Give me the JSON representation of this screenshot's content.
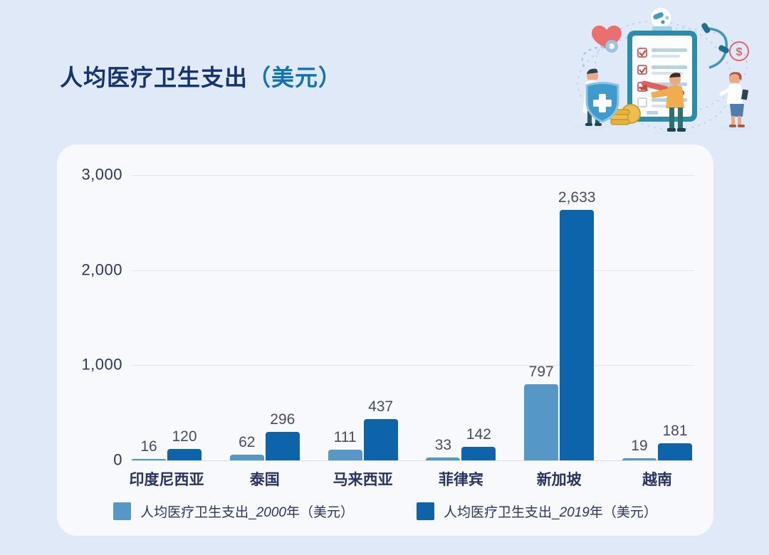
{
  "page": {
    "title_main": "人均医疗卫生支出",
    "title_paren": "（美元）"
  },
  "chart_data": {
    "type": "bar",
    "title": "人均医疗卫生支出（美元）",
    "categories": [
      "印度尼西亚",
      "泰国",
      "马来西亚",
      "菲律宾",
      "新加坡",
      "越南"
    ],
    "series": [
      {
        "name": "人均医疗卫生支出_2000年（美元）",
        "color": "#5598c7",
        "values": [
          16,
          62,
          111,
          33,
          797,
          19
        ]
      },
      {
        "name": "人均医疗卫生支出_2019年（美元）",
        "color": "#0d64ab",
        "values": [
          120,
          296,
          437,
          142,
          2633,
          181
        ]
      }
    ],
    "xlabel": "",
    "ylabel": "",
    "ylim": [
      0,
      3000
    ],
    "yticks": [
      0,
      1000,
      2000,
      3000
    ],
    "grid": true,
    "legend_position": "bottom"
  },
  "legend": {
    "items": [
      {
        "prefix": "人均医疗卫生支出_",
        "year": "2000",
        "suffix": "年（美元）",
        "color": "#5598c7"
      },
      {
        "prefix": "人均医疗卫生支出_",
        "year": "2019",
        "suffix": "年（美元）",
        "color": "#0d64ab"
      }
    ]
  },
  "colors": {
    "page_bg": "#dfe9f8",
    "card_bg": "#f7f9fd",
    "series_2000": "#5598c7",
    "series_2019": "#0d64ab",
    "title_navy": "#15336f",
    "title_accent": "#1172b4",
    "gridline": "#e3e6ef",
    "axis_text": "#2e3560",
    "value_label": "#474c61",
    "category_label": "#283363"
  }
}
